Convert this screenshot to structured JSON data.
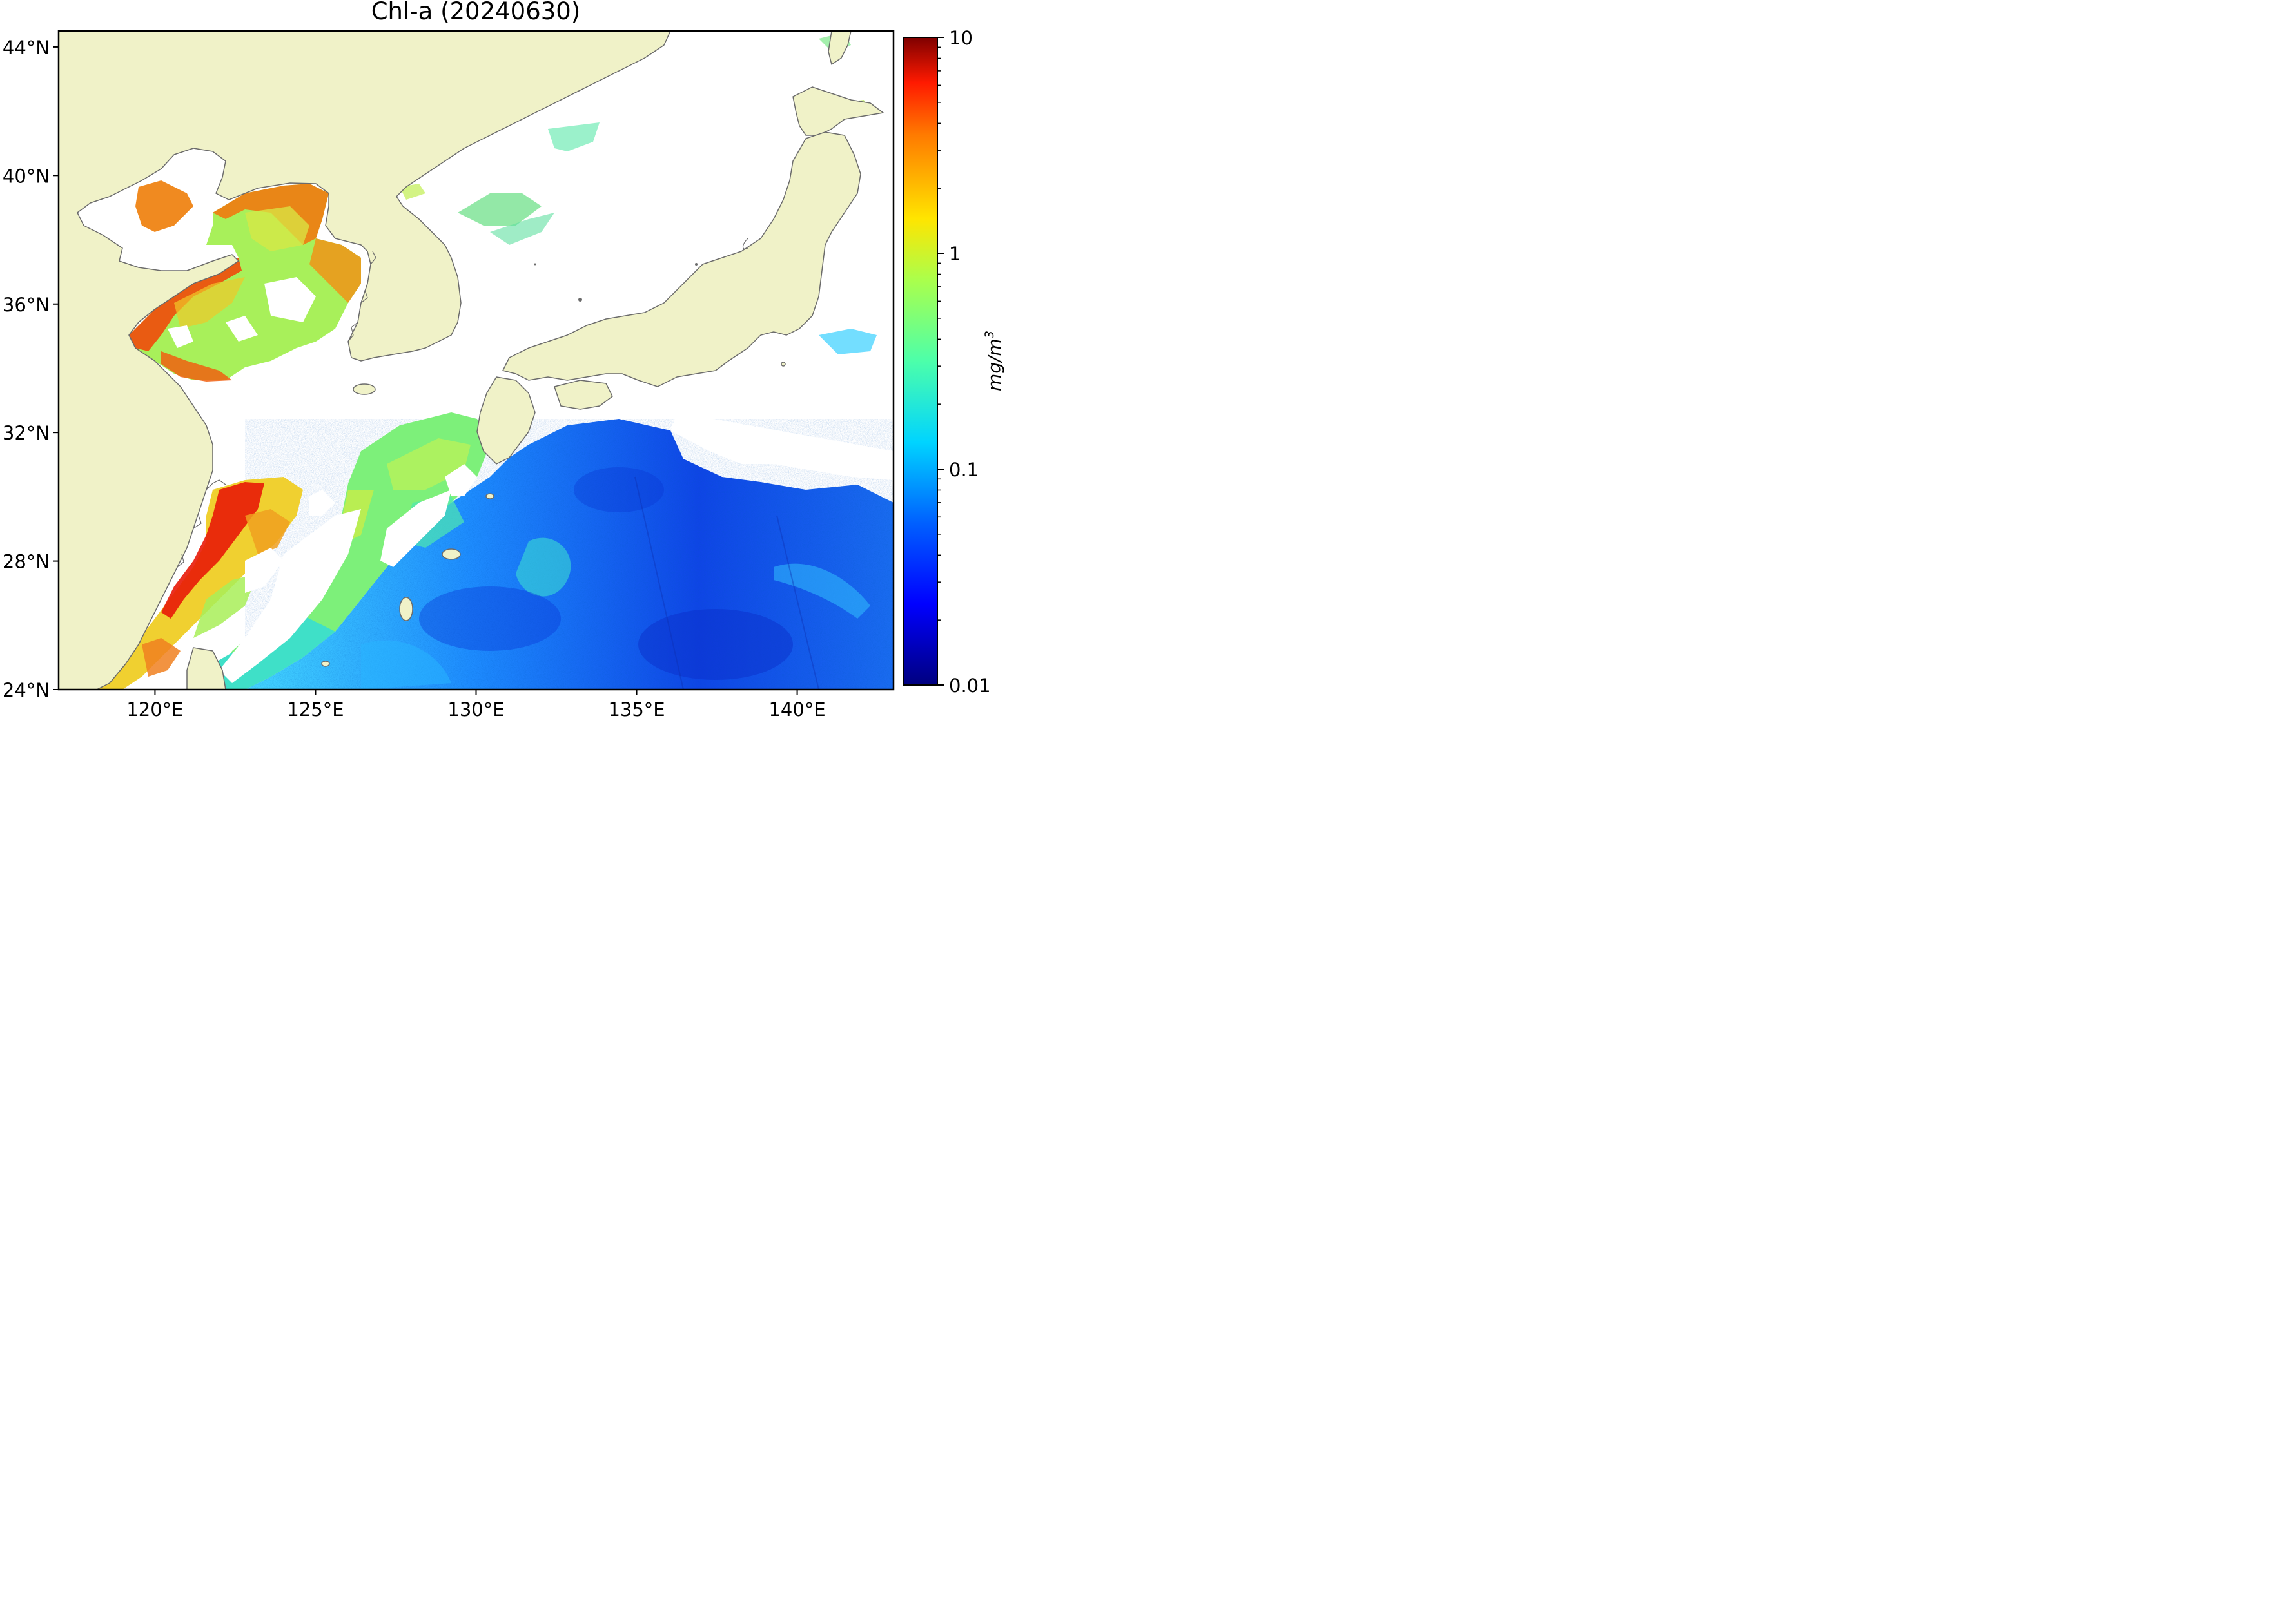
{
  "title": "Chl-a (20240630)",
  "map": {
    "lon_range": [
      117,
      143
    ],
    "lat_range": [
      24,
      44.5
    ],
    "x_ticks": [
      "120°E",
      "125°E",
      "130°E",
      "135°E",
      "140°E"
    ],
    "y_ticks": [
      "24°N",
      "28°N",
      "32°N",
      "36°N",
      "40°N",
      "44°N"
    ],
    "land_color": "#f0f2c8",
    "coast_color": "#6b6b6b",
    "no_data_color": "#ffffff"
  },
  "colorbar": {
    "label": "mg/m",
    "label_superscript": "3",
    "scale": "log",
    "range": [
      0.01,
      10
    ],
    "tick_labels": [
      "10",
      "1",
      "0.1",
      "0.01"
    ],
    "colormap": "jet"
  }
}
